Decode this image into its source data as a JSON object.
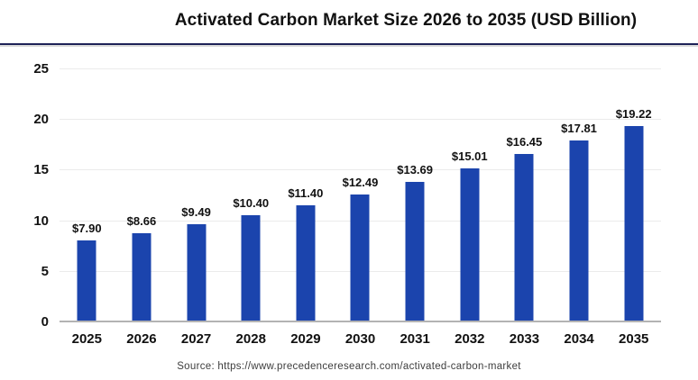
{
  "title": "Activated Carbon Market Size 2026 to 2035 (USD Billion)",
  "source": "Source: https://www.precedenceresearch.com/activated-carbon-market",
  "colors": {
    "bar": "#1B44AD",
    "divider": "#1E2257",
    "gridline": "#EBEBEB",
    "baseline": "#B3B3B3",
    "title_text": "#111111",
    "tick_text": "#111111",
    "source_text": "#3D3D3D"
  },
  "chart_data": {
    "type": "bar",
    "title": "Activated Carbon Market Size 2026 to 2035 (USD Billion)",
    "categories": [
      "2025",
      "2026",
      "2027",
      "2028",
      "2029",
      "2030",
      "2031",
      "2032",
      "2033",
      "2034",
      "2035"
    ],
    "values": [
      7.9,
      8.66,
      9.49,
      10.4,
      11.4,
      12.49,
      13.69,
      15.01,
      16.45,
      17.81,
      19.22
    ],
    "value_labels": [
      "$7.90",
      "$8.66",
      "$9.49",
      "$10.40",
      "$11.40",
      "$12.49",
      "$13.69",
      "$15.01",
      "$16.45",
      "$17.81",
      "$19.22"
    ],
    "xlabel": "",
    "ylabel": "",
    "ylim": [
      0,
      25
    ],
    "yticks": [
      0,
      5,
      10,
      15,
      20,
      25
    ],
    "grid": true,
    "legend": false,
    "bar_color": "#1B44AD",
    "source": "Source: https://www.precedenceresearch.com/activated-carbon-market"
  }
}
